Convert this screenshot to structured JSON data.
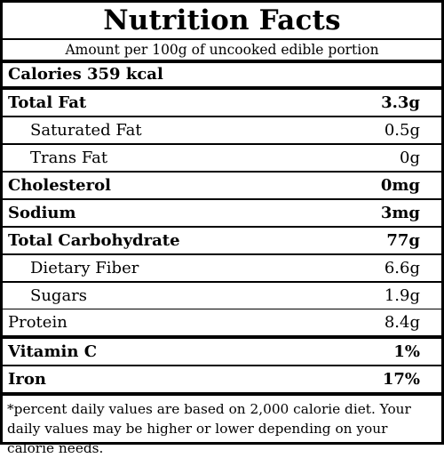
{
  "title": "Nutrition Facts",
  "serving": "Amount per 100g of uncooked edible portion",
  "calories": "Calories 359 kcal",
  "rows": [
    {
      "name": "Total Fat",
      "value": "3.3g"
    },
    {
      "name": "Saturated Fat",
      "value": "0.5g"
    },
    {
      "name": "Trans Fat",
      "value": "0g"
    },
    {
      "name": "Cholesterol",
      "value": "0mg"
    },
    {
      "name": "Sodium",
      "value": "3mg"
    },
    {
      "name": "Total Carbohydrate",
      "value": "77g"
    },
    {
      "name": "Dietary Fiber",
      "value": "6.6g"
    },
    {
      "name": "Sugars",
      "value": "1.9g"
    },
    {
      "name": "Protein",
      "value": "8.4g"
    },
    {
      "name": "Vitamin C",
      "value": "1%"
    },
    {
      "name": "Iron",
      "value": "17%"
    }
  ],
  "footnote": "*percent daily values are based on 2,000 calorie diet. Your daily values may be higher or lower depending on your calorie needs."
}
